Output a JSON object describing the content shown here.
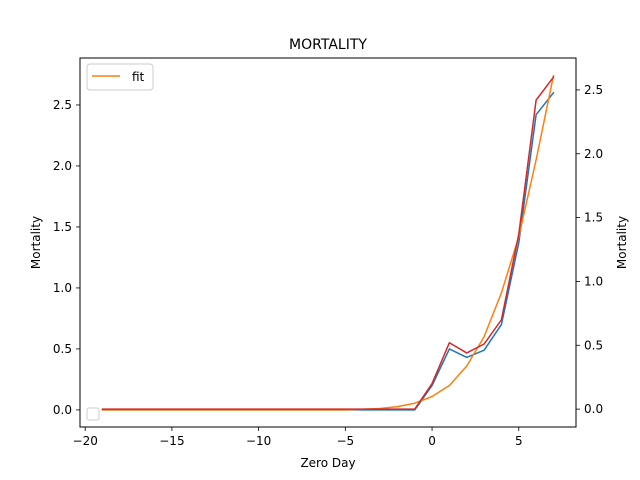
{
  "chart_data": {
    "type": "line",
    "title": "MORTALITY",
    "xlabel": "Zero Day",
    "ylabel_left": "Mortality",
    "ylabel_right": "Mortality",
    "xlim": [
      -20.3,
      8.3
    ],
    "ylim_left": [
      -0.14,
      2.885
    ],
    "ylim_right": [
      -0.14,
      2.75
    ],
    "xticks": [
      -20,
      -15,
      -10,
      -5,
      0,
      5
    ],
    "yticks_left": [
      0.0,
      0.5,
      1.0,
      1.5,
      2.0,
      2.5
    ],
    "yticks_right": [
      0.0,
      0.5,
      1.0,
      1.5,
      2.0,
      2.5
    ],
    "grid": false,
    "legend_position": "upper left",
    "x": [
      -19,
      -18,
      -17,
      -16,
      -15,
      -14,
      -13,
      -12,
      -11,
      -10,
      -9,
      -8,
      -7,
      -6,
      -5,
      -4,
      -3,
      -2,
      -1,
      0,
      1,
      2,
      3,
      4,
      5,
      6,
      7
    ],
    "series": [
      {
        "axis": "left",
        "color": "#1f77b4",
        "values": [
          0,
          0,
          0,
          0,
          0,
          0,
          0,
          0,
          0,
          0,
          0,
          0,
          0,
          0,
          0,
          0,
          0,
          0,
          0,
          0.2,
          0.5,
          0.43,
          0.49,
          0.7,
          1.37,
          2.42,
          2.6
        ]
      },
      {
        "axis": "left",
        "name": "fit",
        "color": "#ff7f0e",
        "values": [
          0,
          0,
          0,
          0,
          0,
          0,
          0,
          0,
          0,
          0,
          0,
          0,
          0,
          0,
          0,
          0.005,
          0.012,
          0.027,
          0.055,
          0.11,
          0.2,
          0.36,
          0.6,
          0.96,
          1.42,
          2.05,
          2.74
        ]
      },
      {
        "axis": "right",
        "color": "#d62728",
        "values": [
          0,
          0,
          0,
          0,
          0,
          0,
          0,
          0,
          0,
          0,
          0,
          0,
          0,
          0,
          0,
          0,
          0,
          0,
          0,
          0.2,
          0.52,
          0.44,
          0.51,
          0.7,
          1.37,
          2.42,
          2.6
        ]
      }
    ],
    "right_legend_entries": [
      {
        "label": ""
      }
    ]
  }
}
